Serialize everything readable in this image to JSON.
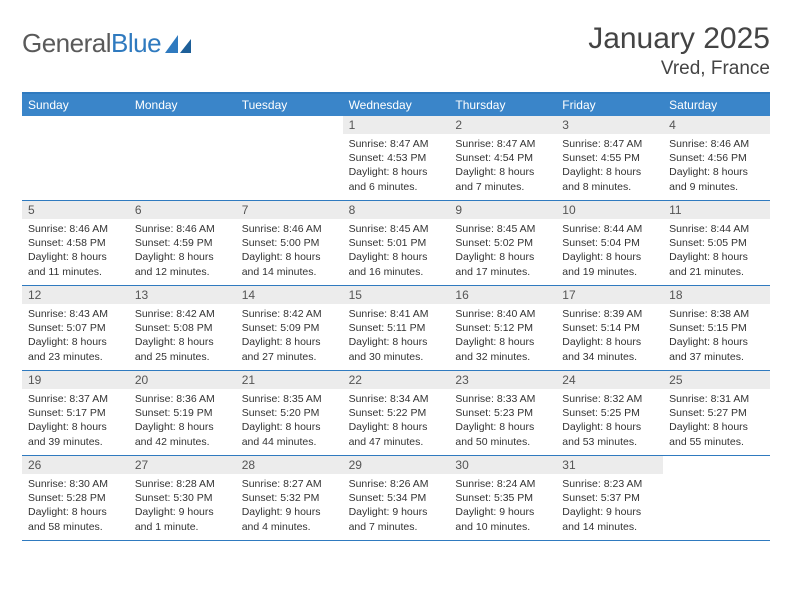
{
  "logo": {
    "word1": "General",
    "word2": "Blue"
  },
  "title": "January 2025",
  "location": "Vred, France",
  "day_names": [
    "Sunday",
    "Monday",
    "Tuesday",
    "Wednesday",
    "Thursday",
    "Friday",
    "Saturday"
  ],
  "colors": {
    "header_bg": "#3a85c9",
    "border": "#2f7abf",
    "daynum_bg": "#ececec",
    "text": "#333333",
    "logo_gray": "#5a5a5a",
    "logo_blue": "#2f7abf"
  },
  "typography": {
    "title_fontsize": 30,
    "location_fontsize": 19,
    "dayheader_fontsize": 12,
    "daynum_fontsize": 12,
    "details_fontsize": 10.5
  },
  "layout": {
    "cols": 7,
    "rows": 5,
    "blank_leading_cells": 3
  },
  "days": [
    {
      "n": 1,
      "sunrise": "8:47 AM",
      "sunset": "4:53 PM",
      "dl_h": 8,
      "dl_m": 6
    },
    {
      "n": 2,
      "sunrise": "8:47 AM",
      "sunset": "4:54 PM",
      "dl_h": 8,
      "dl_m": 7
    },
    {
      "n": 3,
      "sunrise": "8:47 AM",
      "sunset": "4:55 PM",
      "dl_h": 8,
      "dl_m": 8
    },
    {
      "n": 4,
      "sunrise": "8:46 AM",
      "sunset": "4:56 PM",
      "dl_h": 8,
      "dl_m": 9
    },
    {
      "n": 5,
      "sunrise": "8:46 AM",
      "sunset": "4:58 PM",
      "dl_h": 8,
      "dl_m": 11
    },
    {
      "n": 6,
      "sunrise": "8:46 AM",
      "sunset": "4:59 PM",
      "dl_h": 8,
      "dl_m": 12
    },
    {
      "n": 7,
      "sunrise": "8:46 AM",
      "sunset": "5:00 PM",
      "dl_h": 8,
      "dl_m": 14
    },
    {
      "n": 8,
      "sunrise": "8:45 AM",
      "sunset": "5:01 PM",
      "dl_h": 8,
      "dl_m": 16
    },
    {
      "n": 9,
      "sunrise": "8:45 AM",
      "sunset": "5:02 PM",
      "dl_h": 8,
      "dl_m": 17
    },
    {
      "n": 10,
      "sunrise": "8:44 AM",
      "sunset": "5:04 PM",
      "dl_h": 8,
      "dl_m": 19
    },
    {
      "n": 11,
      "sunrise": "8:44 AM",
      "sunset": "5:05 PM",
      "dl_h": 8,
      "dl_m": 21
    },
    {
      "n": 12,
      "sunrise": "8:43 AM",
      "sunset": "5:07 PM",
      "dl_h": 8,
      "dl_m": 23
    },
    {
      "n": 13,
      "sunrise": "8:42 AM",
      "sunset": "5:08 PM",
      "dl_h": 8,
      "dl_m": 25
    },
    {
      "n": 14,
      "sunrise": "8:42 AM",
      "sunset": "5:09 PM",
      "dl_h": 8,
      "dl_m": 27
    },
    {
      "n": 15,
      "sunrise": "8:41 AM",
      "sunset": "5:11 PM",
      "dl_h": 8,
      "dl_m": 30
    },
    {
      "n": 16,
      "sunrise": "8:40 AM",
      "sunset": "5:12 PM",
      "dl_h": 8,
      "dl_m": 32
    },
    {
      "n": 17,
      "sunrise": "8:39 AM",
      "sunset": "5:14 PM",
      "dl_h": 8,
      "dl_m": 34
    },
    {
      "n": 18,
      "sunrise": "8:38 AM",
      "sunset": "5:15 PM",
      "dl_h": 8,
      "dl_m": 37
    },
    {
      "n": 19,
      "sunrise": "8:37 AM",
      "sunset": "5:17 PM",
      "dl_h": 8,
      "dl_m": 39
    },
    {
      "n": 20,
      "sunrise": "8:36 AM",
      "sunset": "5:19 PM",
      "dl_h": 8,
      "dl_m": 42
    },
    {
      "n": 21,
      "sunrise": "8:35 AM",
      "sunset": "5:20 PM",
      "dl_h": 8,
      "dl_m": 44
    },
    {
      "n": 22,
      "sunrise": "8:34 AM",
      "sunset": "5:22 PM",
      "dl_h": 8,
      "dl_m": 47
    },
    {
      "n": 23,
      "sunrise": "8:33 AM",
      "sunset": "5:23 PM",
      "dl_h": 8,
      "dl_m": 50
    },
    {
      "n": 24,
      "sunrise": "8:32 AM",
      "sunset": "5:25 PM",
      "dl_h": 8,
      "dl_m": 53
    },
    {
      "n": 25,
      "sunrise": "8:31 AM",
      "sunset": "5:27 PM",
      "dl_h": 8,
      "dl_m": 55
    },
    {
      "n": 26,
      "sunrise": "8:30 AM",
      "sunset": "5:28 PM",
      "dl_h": 8,
      "dl_m": 58
    },
    {
      "n": 27,
      "sunrise": "8:28 AM",
      "sunset": "5:30 PM",
      "dl_h": 9,
      "dl_m": 1
    },
    {
      "n": 28,
      "sunrise": "8:27 AM",
      "sunset": "5:32 PM",
      "dl_h": 9,
      "dl_m": 4
    },
    {
      "n": 29,
      "sunrise": "8:26 AM",
      "sunset": "5:34 PM",
      "dl_h": 9,
      "dl_m": 7
    },
    {
      "n": 30,
      "sunrise": "8:24 AM",
      "sunset": "5:35 PM",
      "dl_h": 9,
      "dl_m": 10
    },
    {
      "n": 31,
      "sunrise": "8:23 AM",
      "sunset": "5:37 PM",
      "dl_h": 9,
      "dl_m": 14
    }
  ]
}
